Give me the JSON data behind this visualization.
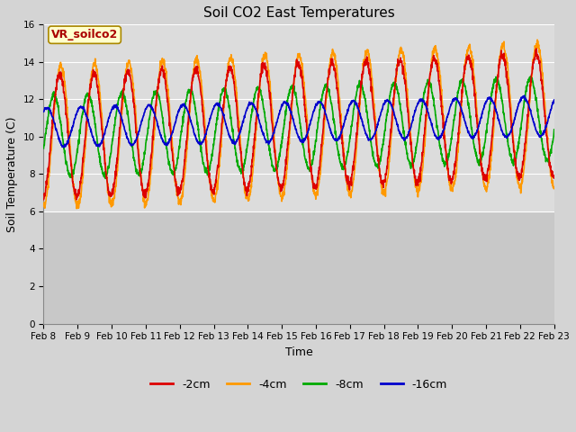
{
  "title": "Soil CO2 East Temperatures",
  "xlabel": "Time",
  "ylabel": "Soil Temperature (C)",
  "xlim": [
    0,
    15
  ],
  "ylim": [
    0,
    16
  ],
  "yticks": [
    0,
    2,
    4,
    6,
    8,
    10,
    12,
    14,
    16
  ],
  "xtick_labels": [
    "Feb 8",
    "Feb 9",
    "Feb 10",
    "Feb 11",
    "Feb 12",
    "Feb 13",
    "Feb 14",
    "Feb 15",
    "Feb 16",
    "Feb 17",
    "Feb 18",
    "Feb 19",
    "Feb 20",
    "Feb 21",
    "Feb 22",
    "Feb 23"
  ],
  "series": {
    "-2cm": {
      "color": "#dd0000",
      "linewidth": 1.2
    },
    "-4cm": {
      "color": "#ff9900",
      "linewidth": 1.2
    },
    "-8cm": {
      "color": "#00aa00",
      "linewidth": 1.2
    },
    "-16cm": {
      "color": "#0000cc",
      "linewidth": 1.2
    }
  },
  "annotation_text": "VR_soilco2",
  "annotation_bg": "#ffffcc",
  "annotation_border": "#aa8800",
  "annotation_text_color": "#aa0000",
  "background_color": "#d4d4d4",
  "plot_active_bg": "#dcdcdc",
  "plot_inactive_bg": "#c8c8c8",
  "grid_color": "#ffffff",
  "title_fontsize": 11,
  "legend_fontsize": 9,
  "tick_fontsize": 7.5
}
